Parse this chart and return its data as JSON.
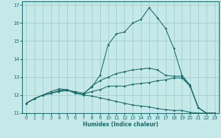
{
  "xlabel": "Humidex (Indice chaleur)",
  "ylabel": "",
  "bg_color": "#c5e8e8",
  "grid_color": "#a0cccc",
  "line_color": "#1a6b6b",
  "xlim": [
    -0.5,
    23.5
  ],
  "ylim": [
    11.0,
    17.2
  ],
  "yticks": [
    11,
    12,
    13,
    14,
    15,
    16,
    17
  ],
  "xticks": [
    0,
    1,
    2,
    3,
    4,
    5,
    6,
    7,
    8,
    9,
    10,
    11,
    12,
    13,
    14,
    15,
    16,
    17,
    18,
    19,
    20,
    21,
    22,
    23
  ],
  "lines": [
    {
      "x": [
        0,
        1,
        2,
        3,
        4,
        5,
        6,
        7,
        8,
        9,
        10,
        11,
        12,
        13,
        14,
        15,
        16,
        17,
        18,
        19,
        20,
        21,
        22,
        23
      ],
      "y": [
        11.55,
        11.8,
        12.0,
        12.1,
        12.2,
        12.25,
        12.2,
        12.1,
        12.45,
        13.1,
        14.8,
        15.4,
        15.5,
        16.0,
        16.2,
        16.85,
        16.3,
        15.7,
        14.6,
        13.1,
        12.55,
        11.3,
        11.0,
        11.0
      ]
    },
    {
      "x": [
        0,
        1,
        2,
        3,
        4,
        5,
        6,
        7,
        8,
        9,
        10,
        11,
        12,
        13,
        14,
        15,
        16,
        17,
        18,
        19,
        20,
        21,
        22,
        23
      ],
      "y": [
        11.55,
        11.8,
        12.0,
        12.1,
        12.25,
        12.3,
        12.1,
        12.05,
        12.5,
        12.8,
        13.0,
        13.2,
        13.3,
        13.4,
        13.45,
        13.5,
        13.4,
        13.1,
        13.05,
        13.05,
        12.5,
        11.3,
        11.0,
        11.0
      ]
    },
    {
      "x": [
        0,
        1,
        2,
        3,
        4,
        5,
        6,
        7,
        8,
        9,
        10,
        11,
        12,
        13,
        14,
        15,
        16,
        17,
        18,
        19,
        20,
        21,
        22,
        23
      ],
      "y": [
        11.55,
        11.8,
        12.0,
        12.1,
        12.25,
        12.3,
        12.1,
        12.05,
        12.2,
        12.3,
        12.5,
        12.5,
        12.5,
        12.6,
        12.65,
        12.7,
        12.8,
        12.85,
        12.95,
        12.95,
        12.5,
        11.3,
        11.0,
        11.0
      ]
    },
    {
      "x": [
        0,
        1,
        2,
        3,
        4,
        5,
        6,
        7,
        8,
        9,
        10,
        11,
        12,
        13,
        14,
        15,
        16,
        17,
        18,
        19,
        20,
        21,
        22,
        23
      ],
      "y": [
        11.55,
        11.8,
        12.0,
        12.2,
        12.35,
        12.3,
        12.15,
        12.0,
        11.95,
        11.85,
        11.75,
        11.65,
        11.55,
        11.45,
        11.4,
        11.35,
        11.25,
        11.2,
        11.15,
        11.15,
        11.05,
        11.0,
        11.0,
        10.95
      ]
    }
  ]
}
